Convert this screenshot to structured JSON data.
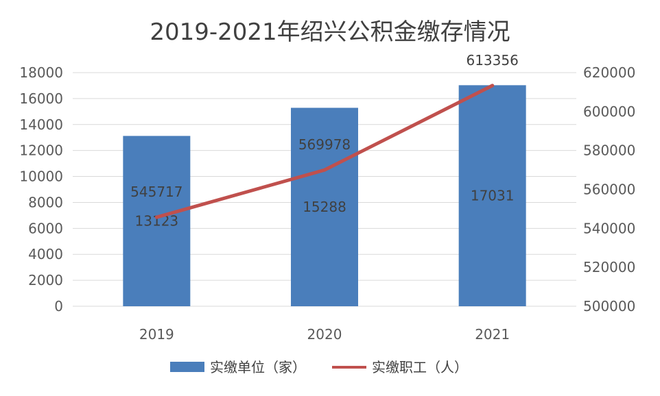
{
  "chart_data": {
    "type": "bar",
    "title": "2019-2021年绍兴公积金缴存情况",
    "categories": [
      "2019",
      "2020",
      "2021"
    ],
    "series": [
      {
        "name": "实缴单位（家）",
        "type": "bar",
        "axis": "left",
        "color": "#4a7ebb",
        "values": [
          13123,
          15288,
          17031
        ],
        "labels": [
          "13123",
          "15288",
          "17031"
        ]
      },
      {
        "name": "实缴职工（人）",
        "type": "line",
        "axis": "right",
        "color": "#c0504d",
        "values": [
          545717,
          569978,
          613356
        ],
        "labels": [
          "545717",
          "569978",
          "613356"
        ]
      }
    ],
    "y_left": {
      "range": [
        0,
        18000
      ],
      "ticks": [
        "0",
        "2000",
        "4000",
        "6000",
        "8000",
        "10000",
        "12000",
        "14000",
        "16000",
        "18000"
      ]
    },
    "y_right": {
      "range": [
        500000,
        620000
      ],
      "ticks": [
        "500000",
        "520000",
        "540000",
        "560000",
        "580000",
        "600000",
        "620000"
      ]
    },
    "grid": true,
    "legend": "bottom"
  }
}
